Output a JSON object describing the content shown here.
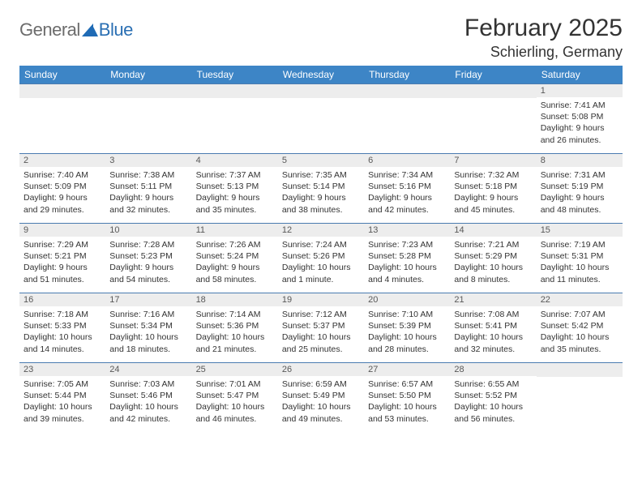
{
  "logo": {
    "general": "General",
    "blue": "Blue",
    "shape_color": "#1f6bb5"
  },
  "title": "February 2025",
  "location": "Schierling, Germany",
  "colors": {
    "header_bg": "#3d85c6",
    "header_text": "#ffffff",
    "daynum_bg": "#ededed",
    "daynum_text": "#585858",
    "border": "#4a7bb0",
    "body_text": "#333333"
  },
  "weekdays": [
    "Sunday",
    "Monday",
    "Tuesday",
    "Wednesday",
    "Thursday",
    "Friday",
    "Saturday"
  ],
  "weeks": [
    [
      {
        "n": "",
        "sr": "",
        "ss": "",
        "dl": ""
      },
      {
        "n": "",
        "sr": "",
        "ss": "",
        "dl": ""
      },
      {
        "n": "",
        "sr": "",
        "ss": "",
        "dl": ""
      },
      {
        "n": "",
        "sr": "",
        "ss": "",
        "dl": ""
      },
      {
        "n": "",
        "sr": "",
        "ss": "",
        "dl": ""
      },
      {
        "n": "",
        "sr": "",
        "ss": "",
        "dl": ""
      },
      {
        "n": "1",
        "sr": "Sunrise: 7:41 AM",
        "ss": "Sunset: 5:08 PM",
        "dl": "Daylight: 9 hours and 26 minutes."
      }
    ],
    [
      {
        "n": "2",
        "sr": "Sunrise: 7:40 AM",
        "ss": "Sunset: 5:09 PM",
        "dl": "Daylight: 9 hours and 29 minutes."
      },
      {
        "n": "3",
        "sr": "Sunrise: 7:38 AM",
        "ss": "Sunset: 5:11 PM",
        "dl": "Daylight: 9 hours and 32 minutes."
      },
      {
        "n": "4",
        "sr": "Sunrise: 7:37 AM",
        "ss": "Sunset: 5:13 PM",
        "dl": "Daylight: 9 hours and 35 minutes."
      },
      {
        "n": "5",
        "sr": "Sunrise: 7:35 AM",
        "ss": "Sunset: 5:14 PM",
        "dl": "Daylight: 9 hours and 38 minutes."
      },
      {
        "n": "6",
        "sr": "Sunrise: 7:34 AM",
        "ss": "Sunset: 5:16 PM",
        "dl": "Daylight: 9 hours and 42 minutes."
      },
      {
        "n": "7",
        "sr": "Sunrise: 7:32 AM",
        "ss": "Sunset: 5:18 PM",
        "dl": "Daylight: 9 hours and 45 minutes."
      },
      {
        "n": "8",
        "sr": "Sunrise: 7:31 AM",
        "ss": "Sunset: 5:19 PM",
        "dl": "Daylight: 9 hours and 48 minutes."
      }
    ],
    [
      {
        "n": "9",
        "sr": "Sunrise: 7:29 AM",
        "ss": "Sunset: 5:21 PM",
        "dl": "Daylight: 9 hours and 51 minutes."
      },
      {
        "n": "10",
        "sr": "Sunrise: 7:28 AM",
        "ss": "Sunset: 5:23 PM",
        "dl": "Daylight: 9 hours and 54 minutes."
      },
      {
        "n": "11",
        "sr": "Sunrise: 7:26 AM",
        "ss": "Sunset: 5:24 PM",
        "dl": "Daylight: 9 hours and 58 minutes."
      },
      {
        "n": "12",
        "sr": "Sunrise: 7:24 AM",
        "ss": "Sunset: 5:26 PM",
        "dl": "Daylight: 10 hours and 1 minute."
      },
      {
        "n": "13",
        "sr": "Sunrise: 7:23 AM",
        "ss": "Sunset: 5:28 PM",
        "dl": "Daylight: 10 hours and 4 minutes."
      },
      {
        "n": "14",
        "sr": "Sunrise: 7:21 AM",
        "ss": "Sunset: 5:29 PM",
        "dl": "Daylight: 10 hours and 8 minutes."
      },
      {
        "n": "15",
        "sr": "Sunrise: 7:19 AM",
        "ss": "Sunset: 5:31 PM",
        "dl": "Daylight: 10 hours and 11 minutes."
      }
    ],
    [
      {
        "n": "16",
        "sr": "Sunrise: 7:18 AM",
        "ss": "Sunset: 5:33 PM",
        "dl": "Daylight: 10 hours and 14 minutes."
      },
      {
        "n": "17",
        "sr": "Sunrise: 7:16 AM",
        "ss": "Sunset: 5:34 PM",
        "dl": "Daylight: 10 hours and 18 minutes."
      },
      {
        "n": "18",
        "sr": "Sunrise: 7:14 AM",
        "ss": "Sunset: 5:36 PM",
        "dl": "Daylight: 10 hours and 21 minutes."
      },
      {
        "n": "19",
        "sr": "Sunrise: 7:12 AM",
        "ss": "Sunset: 5:37 PM",
        "dl": "Daylight: 10 hours and 25 minutes."
      },
      {
        "n": "20",
        "sr": "Sunrise: 7:10 AM",
        "ss": "Sunset: 5:39 PM",
        "dl": "Daylight: 10 hours and 28 minutes."
      },
      {
        "n": "21",
        "sr": "Sunrise: 7:08 AM",
        "ss": "Sunset: 5:41 PM",
        "dl": "Daylight: 10 hours and 32 minutes."
      },
      {
        "n": "22",
        "sr": "Sunrise: 7:07 AM",
        "ss": "Sunset: 5:42 PM",
        "dl": "Daylight: 10 hours and 35 minutes."
      }
    ],
    [
      {
        "n": "23",
        "sr": "Sunrise: 7:05 AM",
        "ss": "Sunset: 5:44 PM",
        "dl": "Daylight: 10 hours and 39 minutes."
      },
      {
        "n": "24",
        "sr": "Sunrise: 7:03 AM",
        "ss": "Sunset: 5:46 PM",
        "dl": "Daylight: 10 hours and 42 minutes."
      },
      {
        "n": "25",
        "sr": "Sunrise: 7:01 AM",
        "ss": "Sunset: 5:47 PM",
        "dl": "Daylight: 10 hours and 46 minutes."
      },
      {
        "n": "26",
        "sr": "Sunrise: 6:59 AM",
        "ss": "Sunset: 5:49 PM",
        "dl": "Daylight: 10 hours and 49 minutes."
      },
      {
        "n": "27",
        "sr": "Sunrise: 6:57 AM",
        "ss": "Sunset: 5:50 PM",
        "dl": "Daylight: 10 hours and 53 minutes."
      },
      {
        "n": "28",
        "sr": "Sunrise: 6:55 AM",
        "ss": "Sunset: 5:52 PM",
        "dl": "Daylight: 10 hours and 56 minutes."
      },
      {
        "n": "",
        "sr": "",
        "ss": "",
        "dl": ""
      }
    ]
  ]
}
